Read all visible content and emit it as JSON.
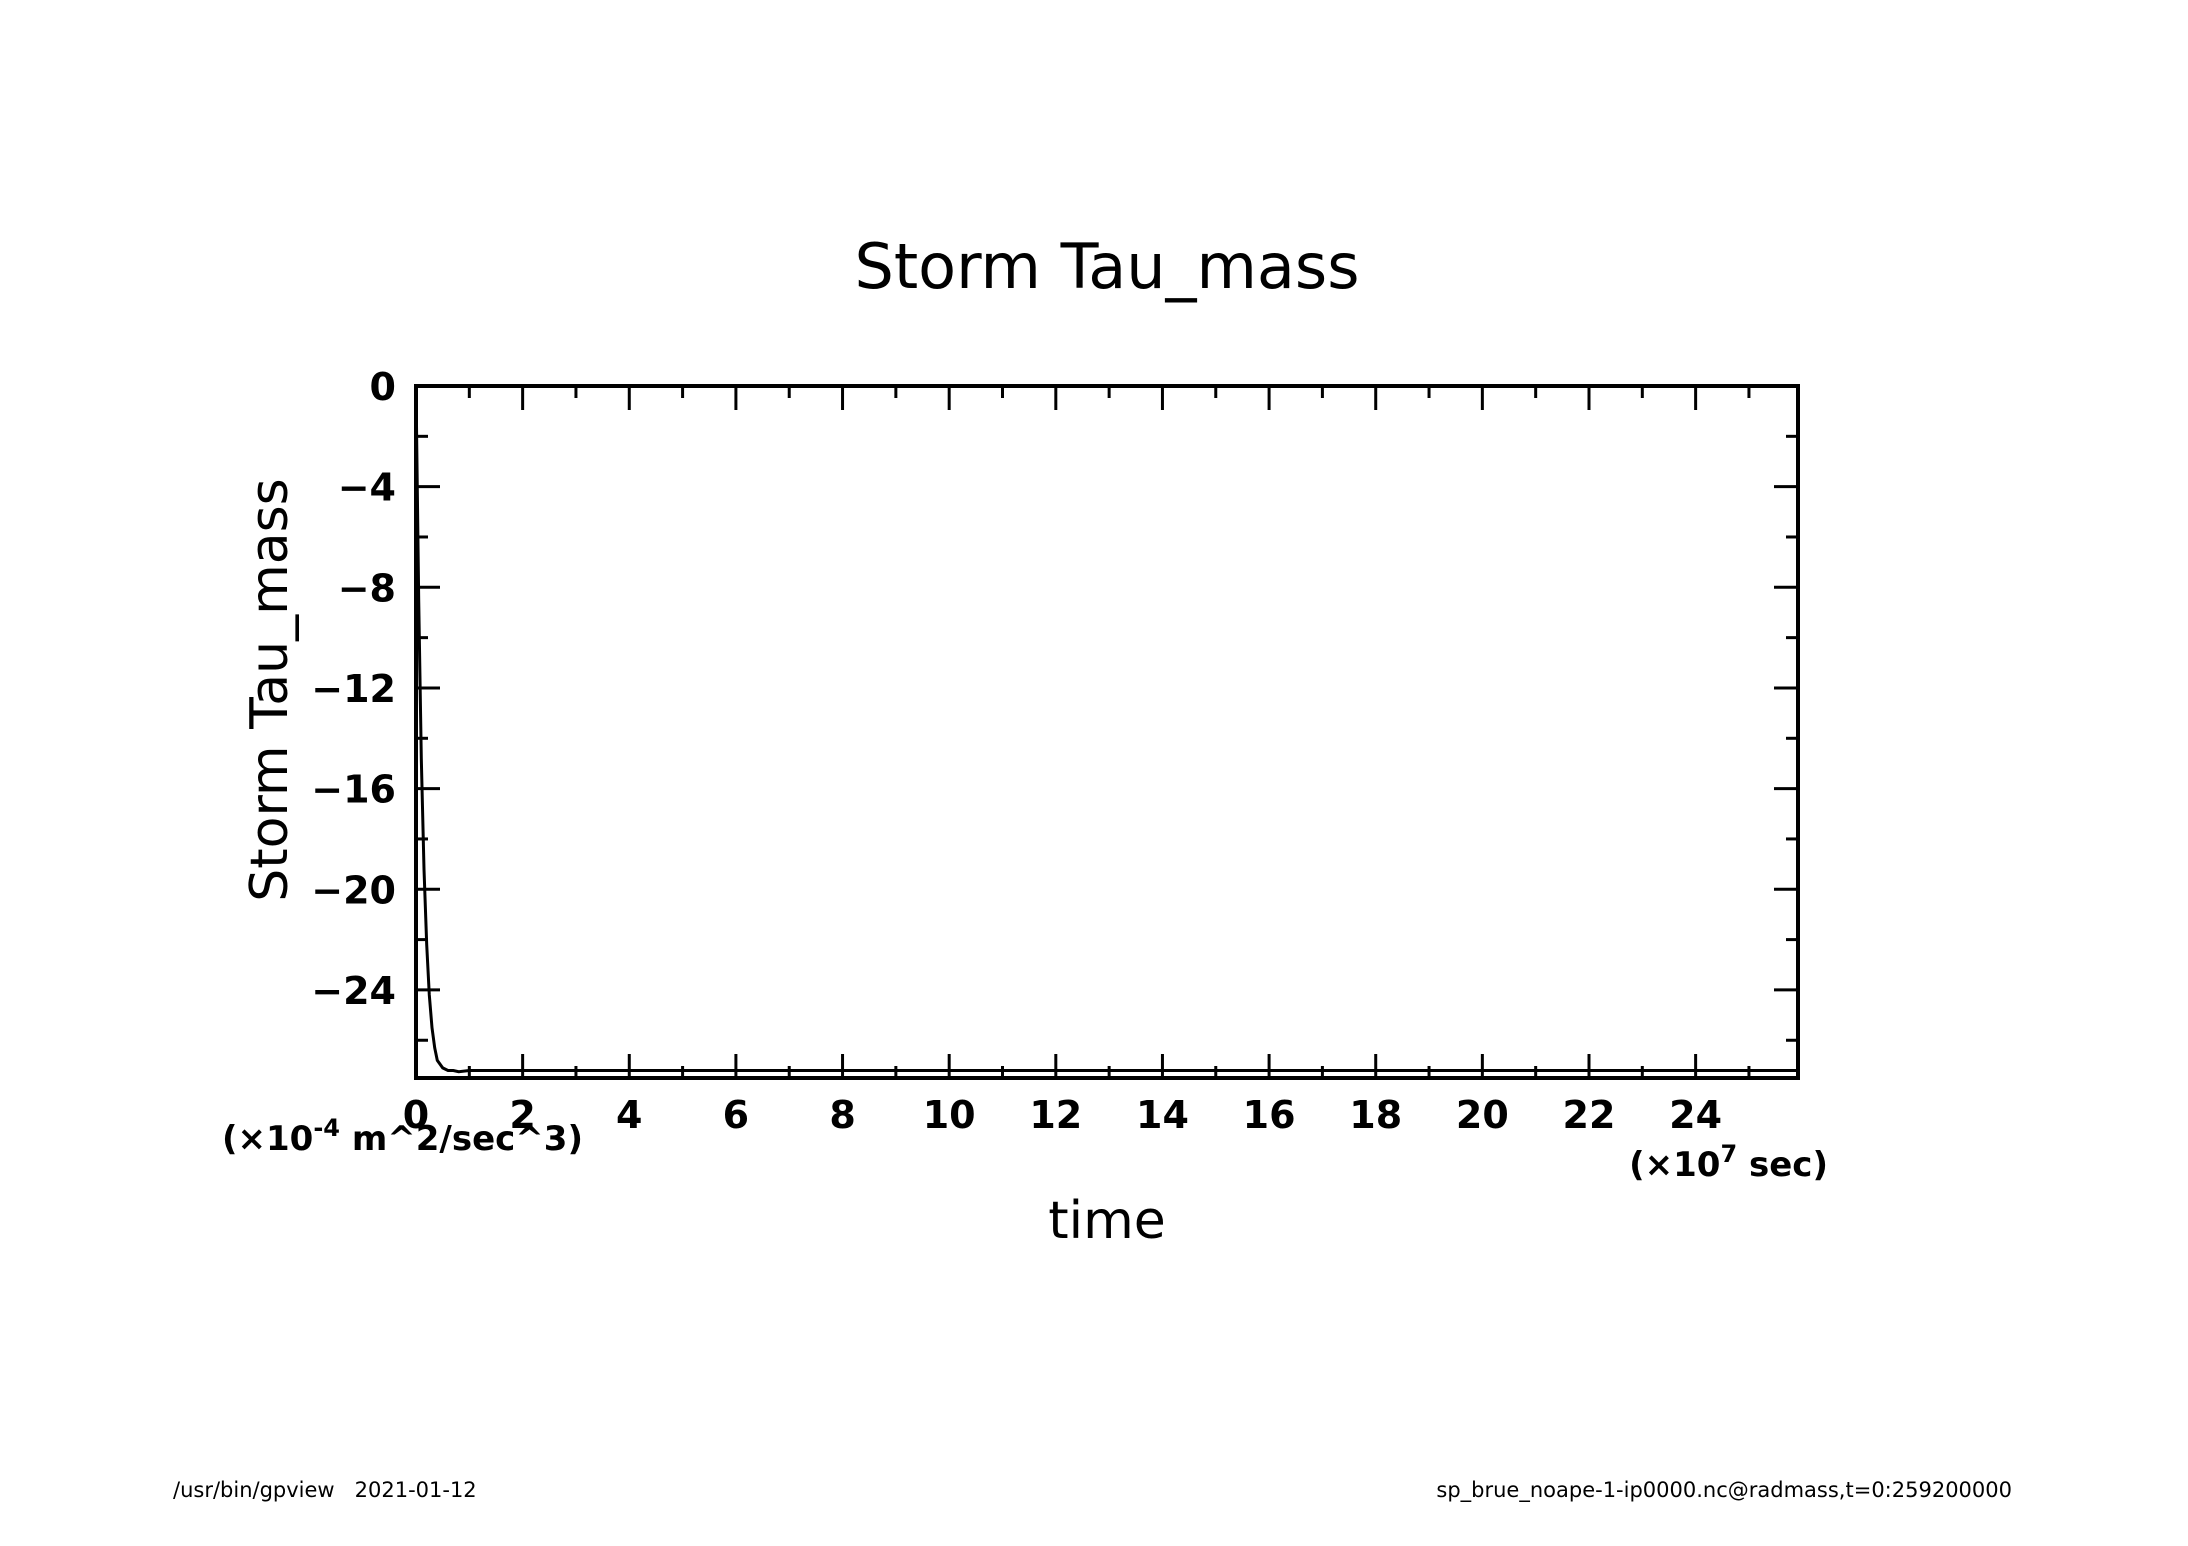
{
  "footer": {
    "left": "/usr/bin/gpview   2021-01-12",
    "right": "sp_brue_noape-1-ip0000.nc@radmass,t=0:259200000"
  },
  "chart_data": {
    "type": "line",
    "title": "Storm Tau_mass",
    "xlabel": "time",
    "ylabel": "Storm Tau_mass",
    "x_unit_prefix": "(×10",
    "x_unit_exp": "7",
    "x_unit_suffix": " sec)",
    "y_unit_prefix": "(×10",
    "y_unit_exp": "-4",
    "y_unit_suffix": " m^2/sec^3)",
    "xlim": [
      0,
      25.92
    ],
    "ylim": [
      -27.5,
      0
    ],
    "x_ticks": [
      0,
      2,
      4,
      6,
      8,
      10,
      12,
      14,
      16,
      18,
      20,
      22,
      24
    ],
    "x_tick_labels": [
      "0",
      "2",
      "4",
      "6",
      "8",
      "10",
      "12",
      "14",
      "16",
      "18",
      "20",
      "22",
      "24"
    ],
    "y_ticks": [
      0,
      -4,
      -8,
      -12,
      -16,
      -20,
      -24
    ],
    "y_tick_labels": [
      "0",
      "−4",
      "−8",
      "−12",
      "−16",
      "−20",
      "−24"
    ],
    "grid": false,
    "series": [
      {
        "x": [
          0,
          0.05,
          0.1,
          0.15,
          0.2,
          0.25,
          0.3,
          0.35,
          0.4,
          0.5,
          0.6,
          0.7,
          0.8,
          1.0,
          1.5,
          2,
          4,
          6,
          8,
          10,
          12,
          14,
          16,
          18,
          20,
          22,
          24,
          25.92
        ],
        "y": [
          0,
          -8.5,
          -14.8,
          -19.2,
          -22.2,
          -24.2,
          -25.5,
          -26.3,
          -26.8,
          -27.1,
          -27.2,
          -27.2,
          -27.25,
          -27.2,
          -27.2,
          -27.2,
          -27.2,
          -27.2,
          -27.2,
          -27.2,
          -27.2,
          -27.2,
          -27.2,
          -27.2,
          -27.2,
          -27.2,
          -27.2,
          -27.2
        ]
      }
    ]
  }
}
